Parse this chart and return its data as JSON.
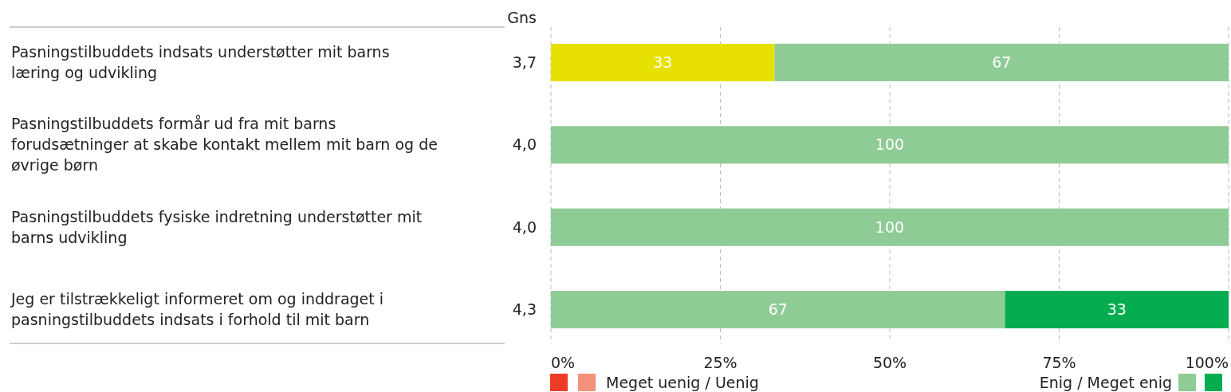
{
  "chart_data": {
    "type": "bar",
    "orientation": "horizontal",
    "stacked": true,
    "categories": [
      "Pasningstilbuddets indsats understøtter mit barns læring og udvikling",
      "Pasningstilbuddets formår ud fra mit barns forudsætninger at skabe kontakt mellem mit barn og de øvrige børn",
      "Pasningstilbuddets fysiske indretning understøtter mit barns udvikling",
      "Jeg er tilstrækkeligt informeret om og inddraget i pasningstilbuddets indsats i forhold til mit barn"
    ],
    "series": [
      {
        "color": "#ee3b24",
        "values": [
          null,
          null,
          null,
          null
        ]
      },
      {
        "name": "Meget uenig / Uenig",
        "color": "#f4917a",
        "values": [
          null,
          null,
          null,
          null
        ]
      },
      {
        "color": "#e8e000",
        "values": [
          33,
          null,
          null,
          null
        ]
      },
      {
        "name": "Enig / Meget enig",
        "color": "#8fcb94",
        "values": [
          67,
          100,
          100,
          67
        ]
      },
      {
        "color": "#05ad50",
        "values": [
          null,
          null,
          null,
          33
        ]
      }
    ],
    "xlim": [
      0,
      100
    ],
    "xticks": [
      {
        "value": 0,
        "label": "0%"
      },
      {
        "value": 25,
        "label": "25%"
      },
      {
        "value": 50,
        "label": "50%"
      },
      {
        "value": 75,
        "label": "75%"
      },
      {
        "value": 100,
        "label": "100%"
      }
    ],
    "grid": "x",
    "data_labels": true,
    "legend": "bottom",
    "annotations": [
      "Gns",
      "3,7",
      "4,0",
      "4,0",
      "4,3"
    ]
  }
}
